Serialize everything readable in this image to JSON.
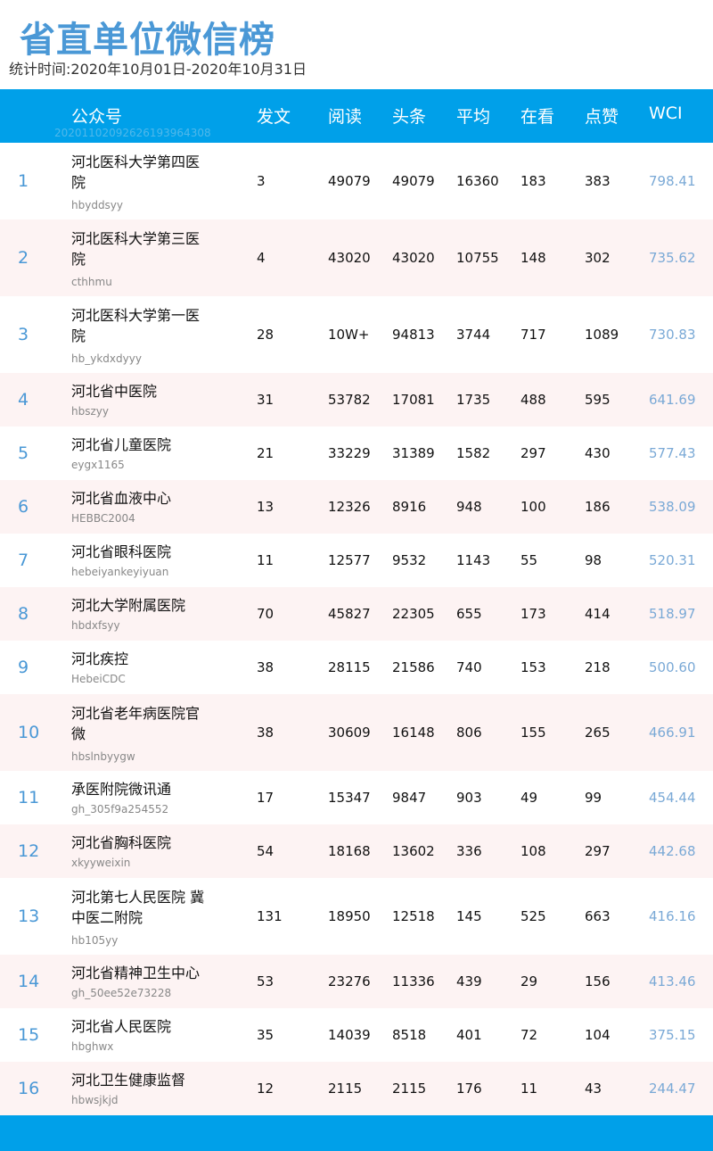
{
  "title": "省直单位微信榜",
  "period": "统计时间:2020年10月01日-2020年10月31日",
  "header": {
    "account": "公众号",
    "posts": "发文",
    "reads": "阅读",
    "headline": "头条",
    "average": "平均",
    "watching": "在看",
    "likes": "点赞",
    "wci": "WCI",
    "code": "2020110209262619396430​8"
  },
  "colors": {
    "header_bg": "#00a0e9",
    "title": "#4a98d6",
    "alt_row": "#fdf3f3",
    "wci": "#7aa9d6"
  },
  "rows": [
    {
      "rank": "1",
      "name": "河北医科大学第四医院",
      "account": "hbyddsyy",
      "posts": "3",
      "reads": "49079",
      "headline": "49079",
      "average": "16360",
      "watching": "183",
      "likes": "383",
      "wci": "798.41"
    },
    {
      "rank": "2",
      "name": "河北医科大学第三医院",
      "account": "cthhmu",
      "posts": "4",
      "reads": "43020",
      "headline": "43020",
      "average": "10755",
      "watching": "148",
      "likes": "302",
      "wci": "735.62"
    },
    {
      "rank": "3",
      "name": "河北医科大学第一医院",
      "account": "hb_ykdxdyyy",
      "posts": "28",
      "reads": "10W+",
      "headline": "94813",
      "average": "3744",
      "watching": "717",
      "likes": "1089",
      "wci": "730.83"
    },
    {
      "rank": "4",
      "name": "河北省中医院",
      "account": "hbszyy",
      "posts": "31",
      "reads": "53782",
      "headline": "17081",
      "average": "1735",
      "watching": "488",
      "likes": "595",
      "wci": "641.69"
    },
    {
      "rank": "5",
      "name": "河北省儿童医院",
      "account": "eygx1165",
      "posts": "21",
      "reads": "33229",
      "headline": "31389",
      "average": "1582",
      "watching": "297",
      "likes": "430",
      "wci": "577.43"
    },
    {
      "rank": "6",
      "name": "河北省血液中心",
      "account": "HEBBC2004",
      "posts": "13",
      "reads": "12326",
      "headline": "8916",
      "average": "948",
      "watching": "100",
      "likes": "186",
      "wci": "538.09"
    },
    {
      "rank": "7",
      "name": "河北省眼科医院",
      "account": "hebeiyankeyiyuan",
      "posts": "11",
      "reads": "12577",
      "headline": "9532",
      "average": "1143",
      "watching": "55",
      "likes": "98",
      "wci": "520.31"
    },
    {
      "rank": "8",
      "name": "河北大学附属医院",
      "account": "hbdxfsyy",
      "posts": "70",
      "reads": "45827",
      "headline": "22305",
      "average": "655",
      "watching": "173",
      "likes": "414",
      "wci": "518.97"
    },
    {
      "rank": "9",
      "name": "河北疾控",
      "account": "HebeiCDC",
      "posts": "38",
      "reads": "28115",
      "headline": "21586",
      "average": "740",
      "watching": "153",
      "likes": "218",
      "wci": "500.60"
    },
    {
      "rank": "10",
      "name": "河北省老年病医院官微",
      "account": "hbslnbyygw",
      "posts": "38",
      "reads": "30609",
      "headline": "16148",
      "average": "806",
      "watching": "155",
      "likes": "265",
      "wci": "466.91"
    },
    {
      "rank": "11",
      "name": "承医附院微讯通",
      "account": "gh_305f9a254552",
      "posts": "17",
      "reads": "15347",
      "headline": "9847",
      "average": "903",
      "watching": "49",
      "likes": "99",
      "wci": "454.44"
    },
    {
      "rank": "12",
      "name": "河北省胸科医院",
      "account": "xkyyweixin",
      "posts": "54",
      "reads": "18168",
      "headline": "13602",
      "average": "336",
      "watching": "108",
      "likes": "297",
      "wci": "442.68"
    },
    {
      "rank": "13",
      "name": "河北第七人民医院 冀中医二附院",
      "account": "hb105yy",
      "posts": "131",
      "reads": "18950",
      "headline": "12518",
      "average": "145",
      "watching": "525",
      "likes": "663",
      "wci": "416.16"
    },
    {
      "rank": "14",
      "name": "河北省精神卫生中心",
      "account": "gh_50ee52e73228",
      "posts": "53",
      "reads": "23276",
      "headline": "11336",
      "average": "439",
      "watching": "29",
      "likes": "156",
      "wci": "413.46"
    },
    {
      "rank": "15",
      "name": "河北省人民医院",
      "account": "hbghwx",
      "posts": "35",
      "reads": "14039",
      "headline": "8518",
      "average": "401",
      "watching": "72",
      "likes": "104",
      "wci": "375.15"
    },
    {
      "rank": "16",
      "name": "河北卫生健康监督",
      "account": "hbwsjkjd",
      "posts": "12",
      "reads": "2115",
      "headline": "2115",
      "average": "176",
      "watching": "11",
      "likes": "43",
      "wci": "244.47"
    }
  ]
}
